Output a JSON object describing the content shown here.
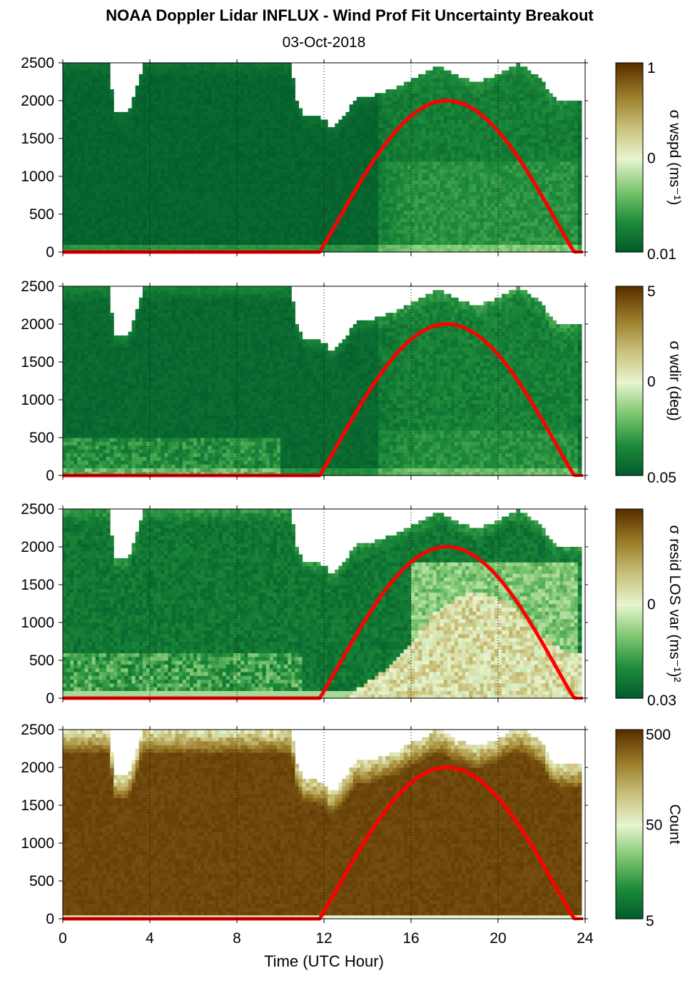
{
  "title": "NOAA Doppler Lidar INFLUX - Wind Prof Fit Uncertainty Breakout",
  "subtitle": "03-Oct-2018",
  "colors": {
    "cmap": [
      "#00582a",
      "#1d8b3a",
      "#7ec670",
      "#e7f5cf",
      "#c9c07a",
      "#9a7c28",
      "#5a3000"
    ],
    "sun_curve": "#ff0000",
    "background": "#ffffff"
  },
  "chart_data": [
    {
      "type": "heatmap",
      "title": "",
      "xlabel": "",
      "ylabel": "",
      "xlim": [
        0,
        24
      ],
      "ylim": [
        0,
        2500
      ],
      "x_ticks": [
        "0",
        "4",
        "8",
        "12",
        "16",
        "20",
        "24"
      ],
      "y_ticks": [
        "0",
        "500",
        "1000",
        "1500",
        "2000",
        "2500"
      ],
      "colorbar": {
        "label": "σ wspd (ms⁻¹)",
        "ticks": [
          "1",
          "0",
          "0.01"
        ],
        "log": true
      },
      "field": "wspd",
      "sun_elevation_curve": {
        "x": [
          0,
          11.8,
          13,
          14,
          15,
          16,
          17,
          17.6,
          18,
          19,
          20,
          21,
          22,
          23,
          23.5,
          24
        ],
        "y": [
          0,
          0,
          550,
          1020,
          1440,
          1760,
          1950,
          2000,
          1990,
          1850,
          1580,
          1200,
          730,
          230,
          0,
          0
        ]
      }
    },
    {
      "type": "heatmap",
      "xlim": [
        0,
        24
      ],
      "ylim": [
        0,
        2500
      ],
      "x_ticks": [
        "0",
        "4",
        "8",
        "12",
        "16",
        "20",
        "24"
      ],
      "y_ticks": [
        "0",
        "500",
        "1000",
        "1500",
        "2000",
        "2500"
      ],
      "colorbar": {
        "label": "σ wdir (deg)",
        "ticks": [
          "5",
          "0",
          "0.05"
        ],
        "log": true
      },
      "field": "wdir"
    },
    {
      "type": "heatmap",
      "xlim": [
        0,
        24
      ],
      "ylim": [
        0,
        2500
      ],
      "x_ticks": [
        "0",
        "4",
        "8",
        "12",
        "16",
        "20",
        "24"
      ],
      "y_ticks": [
        "0",
        "500",
        "1000",
        "1500",
        "2000",
        "2500"
      ],
      "colorbar": {
        "label": "σ resid LOS var (ms⁻¹)²",
        "ticks": [
          "0",
          "0.03"
        ],
        "log": true
      },
      "field": "resid"
    },
    {
      "type": "heatmap",
      "xlim": [
        0,
        24
      ],
      "ylim": [
        0,
        2500
      ],
      "x_ticks": [
        "0",
        "4",
        "8",
        "12",
        "16",
        "20",
        "24"
      ],
      "y_ticks": [
        "0",
        "500",
        "1000",
        "1500",
        "2000",
        "2500"
      ],
      "xlabel": "Time (UTC Hour)",
      "colorbar": {
        "label": "Count",
        "ticks": [
          "500",
          "50",
          "5"
        ],
        "log": true
      },
      "field": "count"
    }
  ],
  "data_top_profile": {
    "x": [
      0,
      2.2,
      2.3,
      2.4,
      3.0,
      3.3,
      3.5,
      3.7,
      4.0,
      10.5,
      10.7,
      11.0,
      11.3,
      11.6,
      12.0,
      12.3,
      12.6,
      13.0,
      13.5,
      14.0,
      14.5,
      15.0,
      15.5,
      16.0,
      16.5,
      17.0,
      17.5,
      18.0,
      18.5,
      19.0,
      19.5,
      20.0,
      20.5,
      21.0,
      21.5,
      22.0,
      22.5,
      23.0,
      23.5,
      23.9
    ],
    "y": [
      2500,
      2500,
      1850,
      1850,
      1850,
      2100,
      2300,
      2500,
      2500,
      2500,
      2050,
      1850,
      1800,
      1800,
      1780,
      1650,
      1700,
      1850,
      2050,
      2050,
      2100,
      2150,
      2200,
      2300,
      2350,
      2450,
      2450,
      2350,
      2300,
      2250,
      2300,
      2350,
      2450,
      2500,
      2400,
      2300,
      2050,
      2000,
      2000,
      2000
    ]
  }
}
